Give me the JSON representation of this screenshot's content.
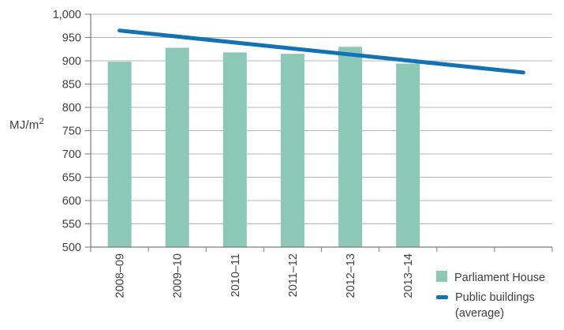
{
  "colors": {
    "bar": "#8BC8B6",
    "line": "#0F73B8",
    "gridline": "#B4B4B4",
    "axis": "#7A7A7A",
    "text": "#3E3E3E",
    "background": "#FFFFFF"
  },
  "chart_data": {
    "type": "combo-bar-line",
    "title": "",
    "ylabel": "MJ/m",
    "ylabel_superscript": "2",
    "categories": [
      "2008–09",
      "2009–10",
      "2010–11",
      "2011–12",
      "2012–13",
      "2013–14"
    ],
    "series": [
      {
        "name": "Parliament House",
        "type": "bar",
        "color": "#8BC8B6",
        "values": [
          898,
          928,
          918,
          915,
          930,
          894
        ]
      },
      {
        "name": "Public buildings (average)",
        "type": "line",
        "color": "#0F73B8",
        "values_at_categories": [
          965,
          952,
          939,
          926,
          913,
          900
        ],
        "trend_start_value": 965,
        "trend_end_value": 875,
        "extends_past_last_category": true
      }
    ],
    "y_axis": {
      "min": 500,
      "max": 1000,
      "step": 50,
      "tick_labels": [
        "1,000",
        "950",
        "900",
        "850",
        "800",
        "750",
        "700",
        "650",
        "600",
        "550",
        "500"
      ]
    },
    "x_axis": {
      "slots": 8,
      "boundary_ticks": 9
    },
    "grid": true,
    "legend_position": "bottom-right"
  }
}
